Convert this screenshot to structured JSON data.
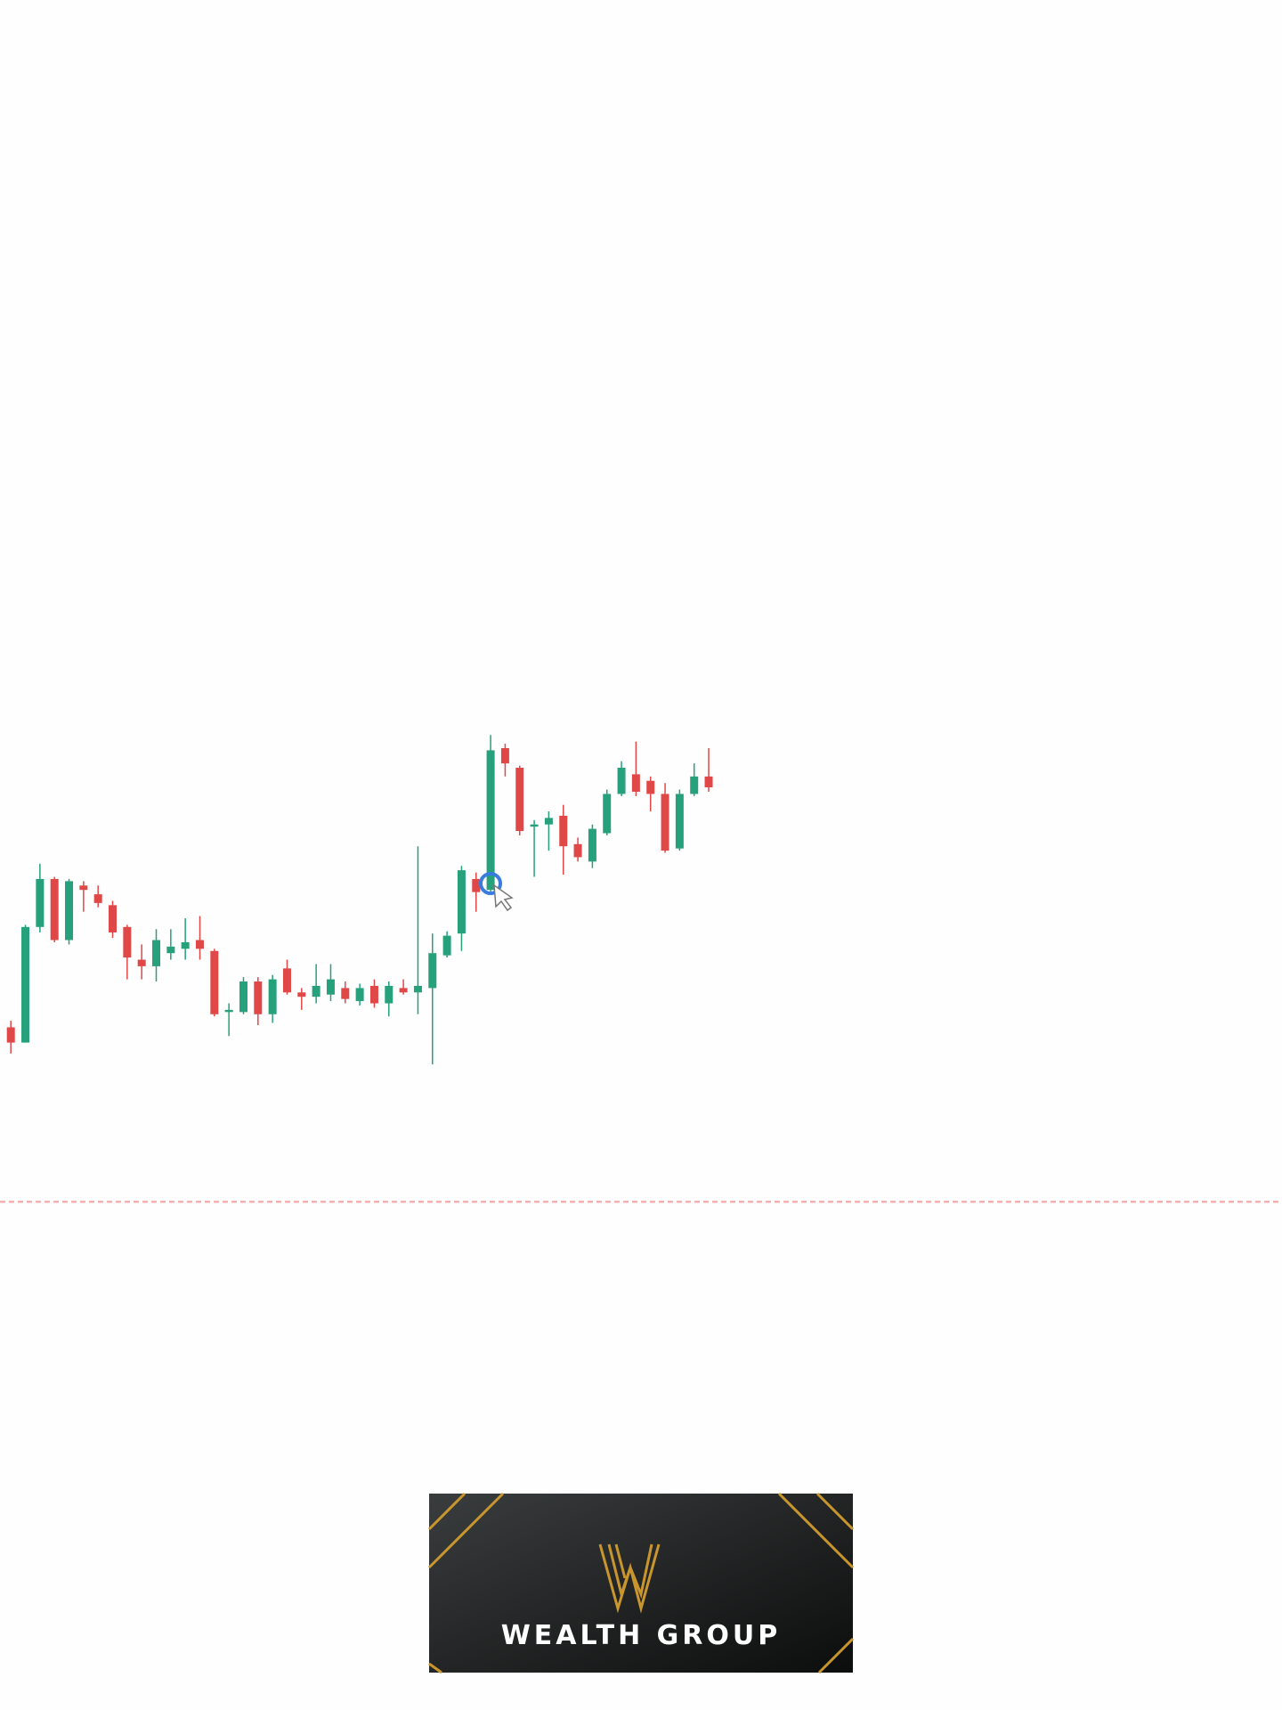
{
  "chart_data": {
    "type": "candlestick",
    "categories": [
      null,
      null,
      null,
      null,
      null,
      null,
      null,
      null,
      null,
      null,
      null,
      null,
      null,
      null,
      null,
      null,
      null,
      null,
      null,
      null,
      null,
      null,
      null,
      null,
      null,
      null,
      null,
      null,
      null,
      null,
      null,
      null,
      null,
      null,
      null,
      null,
      null,
      null,
      null,
      null,
      null,
      null,
      null,
      null,
      null,
      null,
      null,
      null,
      null
    ],
    "open": [
      626,
      612,
      718,
      762,
      706,
      756,
      748,
      738,
      718,
      688,
      682,
      694,
      698,
      706,
      696,
      640,
      640,
      668,
      638,
      680,
      658,
      654,
      656,
      662,
      650,
      664,
      648,
      662,
      658,
      662,
      692,
      712,
      762,
      752,
      882,
      864,
      810,
      812,
      820,
      794,
      778,
      804,
      840,
      858,
      852,
      840,
      790,
      840,
      856
    ],
    "high": [
      632,
      720,
      776,
      764,
      762,
      760,
      756,
      742,
      720,
      702,
      716,
      716,
      726,
      728,
      698,
      648,
      672,
      672,
      674,
      688,
      662,
      684,
      684,
      668,
      666,
      670,
      668,
      670,
      792,
      712,
      714,
      774,
      768,
      894,
      886,
      866,
      816,
      824,
      830,
      800,
      812,
      844,
      870,
      888,
      856,
      850,
      844,
      868,
      882
    ],
    "low": [
      602,
      612,
      713,
      704,
      702,
      732,
      736,
      708,
      670,
      670,
      668,
      688,
      688,
      688,
      636,
      618,
      638,
      628,
      630,
      656,
      642,
      648,
      650,
      648,
      646,
      644,
      636,
      656,
      638,
      592,
      690,
      696,
      732,
      748,
      856,
      802,
      764,
      788,
      766,
      778,
      772,
      802,
      838,
      838,
      824,
      786,
      788,
      838,
      842
    ],
    "close": [
      612,
      718,
      762,
      706,
      760,
      752,
      740,
      713,
      690,
      682,
      706,
      700,
      704,
      698,
      638,
      642,
      668,
      638,
      670,
      658,
      654,
      664,
      670,
      652,
      662,
      648,
      664,
      658,
      664,
      694,
      710,
      770,
      750,
      880,
      868,
      806,
      812,
      818,
      792,
      782,
      808,
      840,
      864,
      842,
      840,
      788,
      840,
      856,
      846
    ],
    "up_color": "#26a17b",
    "down_color": "#e04848",
    "ylim": [
      0,
      1568
    ],
    "hline": {
      "value": 466,
      "color": "#f2a0a0"
    }
  },
  "logo": {
    "text": "WEALTH GROUP"
  }
}
